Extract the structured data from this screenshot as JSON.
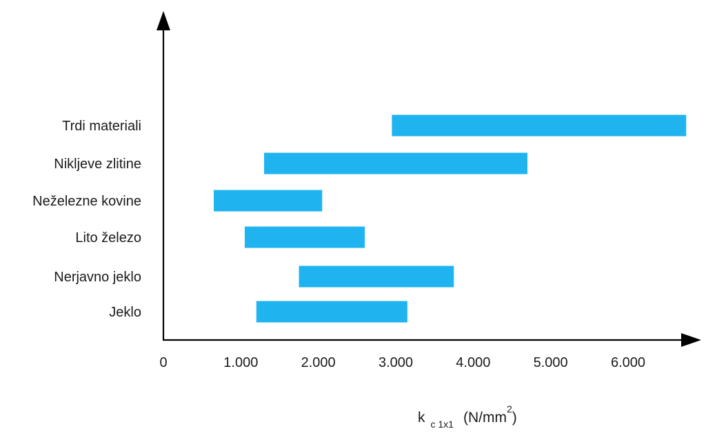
{
  "chart_data": {
    "type": "bar",
    "orientation": "horizontal-range",
    "categories": [
      "Trdi materiali",
      "Nikljeve zlitine",
      "Neželezne kovine",
      "Lito železo",
      "Nerjavno jeklo",
      "Jeklo"
    ],
    "ranges": [
      {
        "category": "Trdi materiali",
        "min": 2950,
        "max": 6750
      },
      {
        "category": "Nikljeve zlitine",
        "min": 1300,
        "max": 4700
      },
      {
        "category": "Neželezne kovine",
        "min": 650,
        "max": 2050
      },
      {
        "category": "Lito železo",
        "min": 1050,
        "max": 2600
      },
      {
        "category": "Nerjavno jeklo",
        "min": 1750,
        "max": 3750
      },
      {
        "category": "Jeklo",
        "min": 1200,
        "max": 3150
      }
    ],
    "x_ticks": [
      "0",
      "1.000",
      "2.000",
      "3.000",
      "4.000",
      "5.000",
      "6.000"
    ],
    "x_tick_values": [
      0,
      1000,
      2000,
      3000,
      4000,
      5000,
      6000
    ],
    "xlabel": {
      "main": "k",
      "subscript": "c 1x1",
      "unit": "(N/mm",
      "unit_sup": "2",
      "unit_close": ")"
    },
    "xlim": [
      0,
      6750
    ],
    "grid": false,
    "bar_color": "#1fb4ef"
  }
}
